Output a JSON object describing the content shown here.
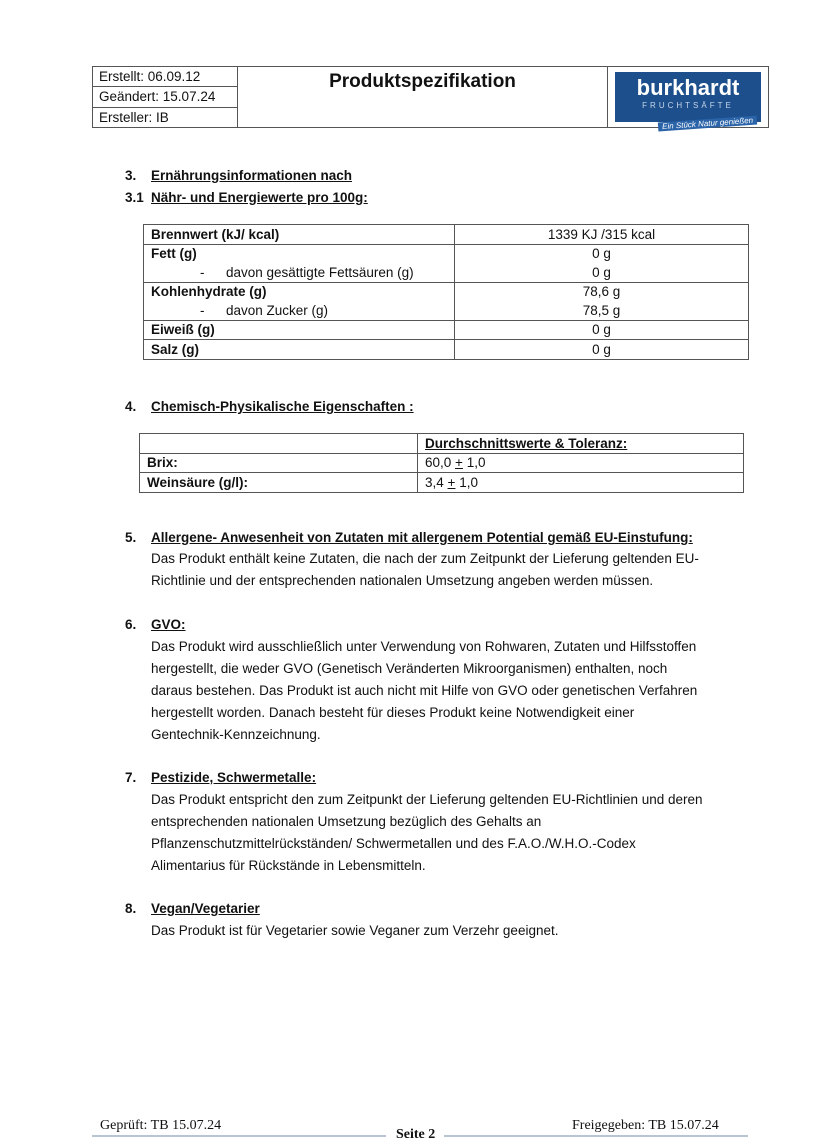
{
  "header": {
    "created": "Erstellt: 06.09.12",
    "changed": "Geändert: 15.07.24",
    "author": "Ersteller: IB",
    "title": "Produktspezifikation",
    "logo": {
      "brand": "burkhardt",
      "sub": "FRUCHTSÄFTE",
      "slogan": "Ein Stück Natur genießen",
      "color": "#1c4f8c"
    }
  },
  "s3": {
    "num": "3.",
    "title": "Ernährungsinformationen nach",
    "sub_num": "3.1",
    "sub_title": "Nähr- und Energiewerte pro 100g:",
    "rows": [
      {
        "label": "Brennwert (kJ/ kcal)",
        "value": "1339 KJ /315 kcal"
      },
      {
        "label": "Fett (g)",
        "value": "0 g"
      },
      {
        "dash": "-",
        "label": "davon gesättigte Fettsäuren (g)",
        "value": "0 g"
      },
      {
        "label": "Kohlenhydrate (g)",
        "value": "78,6 g"
      },
      {
        "dash": "-",
        "label": "davon Zucker (g)",
        "value": "78,5 g"
      },
      {
        "label": "Eiweiß (g)",
        "value": "0 g"
      },
      {
        "label": "Salz (g)",
        "value": "0 g"
      }
    ]
  },
  "s4": {
    "num": "4.",
    "title": "Chemisch-Physikalische Eigenschaften :",
    "col_header": "Durchschnittswerte & Toleranz:",
    "rows": [
      {
        "label": "Brix:",
        "value": "60,0",
        "pm": "+",
        "tol": "1,0"
      },
      {
        "label": "Weinsäure (g/l):",
        "value": "3,4",
        "pm": "+",
        "tol": "1,0"
      }
    ]
  },
  "s5": {
    "num": "5.",
    "title": "Allergene- Anwesenheit von Zutaten mit allergenem Potential gemäß EU-Einstufung:",
    "lines": [
      "Das Produkt enthält keine Zutaten, die nach der zum Zeitpunkt der Lieferung geltenden EU-",
      "Richtlinie und der entsprechenden nationalen Umsetzung angeben werden müssen."
    ]
  },
  "s6": {
    "num": "6.",
    "title": "GVO:",
    "lines": [
      "Das Produkt wird ausschließlich unter Verwendung von Rohwaren, Zutaten und Hilfsstoffen",
      "hergestellt, die weder GVO (Genetisch Veränderten Mikroorganismen) enthalten, noch",
      "daraus bestehen.  Das Produkt ist auch nicht mit Hilfe von GVO oder genetischen Verfahren",
      "hergestellt worden. Danach besteht für dieses Produkt keine Notwendigkeit einer",
      "Gentechnik-Kennzeichnung."
    ]
  },
  "s7": {
    "num": "7.",
    "title": "Pestizide, Schwermetalle:",
    "lines": [
      "Das Produkt entspricht den zum Zeitpunkt der Lieferung geltenden EU-Richtlinien und deren",
      "entsprechenden nationalen Umsetzung bezüglich des Gehalts an",
      "Pflanzenschutzmittelrückständen/ Schwermetallen und des F.A.O./W.H.O.-Codex",
      "Alimentarius für Rückstände in Lebensmitteln."
    ]
  },
  "s8": {
    "num": "8.",
    "title": "Vegan/Vegetarier",
    "lines": [
      "Das Produkt ist für Vegetarier sowie Veganer zum Verzehr geeignet."
    ]
  },
  "footer": {
    "checked": "Geprüft: TB 15.07.24",
    "page": "Seite 2",
    "released": "Freigegeben: TB 15.07.24"
  }
}
